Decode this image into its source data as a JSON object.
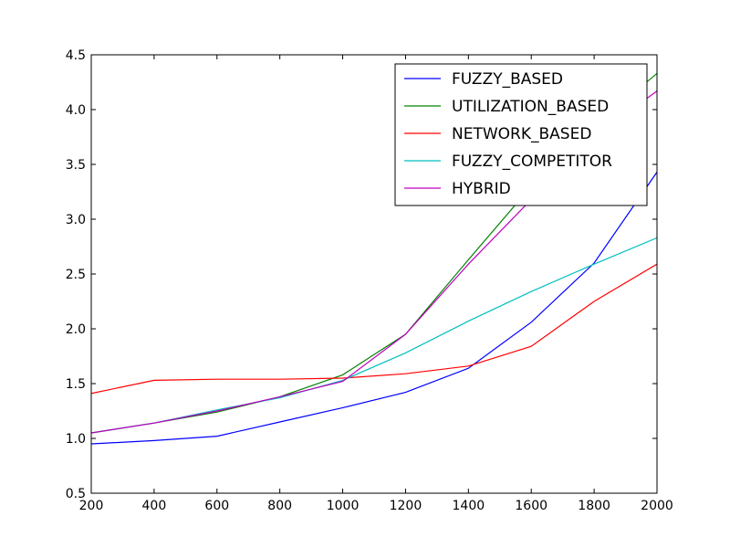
{
  "chart_data": {
    "type": "line",
    "title": "",
    "xlabel": "",
    "ylabel": "",
    "xlim": [
      200,
      2000
    ],
    "ylim": [
      0.5,
      4.5
    ],
    "xticks": [
      "200",
      "400",
      "600",
      "800",
      "1000",
      "1200",
      "1400",
      "1600",
      "1800",
      "2000"
    ],
    "yticks": [
      "0.5",
      "1.0",
      "1.5",
      "2.0",
      "2.5",
      "3.0",
      "3.5",
      "4.0",
      "4.5"
    ],
    "grid": false,
    "legend_position": "top-right",
    "x": [
      200,
      400,
      600,
      800,
      1000,
      1200,
      1400,
      1600,
      1800,
      2000
    ],
    "series": [
      {
        "name": "FUZZY_BASED",
        "color": "#0000ff",
        "values": [
          0.95,
          0.98,
          1.02,
          1.15,
          1.28,
          1.42,
          1.64,
          2.06,
          2.6,
          3.43
        ]
      },
      {
        "name": "UTILIZATION_BASED",
        "color": "#008000",
        "values": [
          1.05,
          1.14,
          1.24,
          1.38,
          1.58,
          1.95,
          2.63,
          3.3,
          3.85,
          4.33
        ]
      },
      {
        "name": "NETWORK_BASED",
        "color": "#ff0000",
        "values": [
          1.41,
          1.53,
          1.54,
          1.54,
          1.55,
          1.59,
          1.66,
          1.84,
          2.25,
          2.59
        ]
      },
      {
        "name": "FUZZY_COMPETITOR",
        "color": "#00bfbf",
        "values": [
          1.05,
          1.14,
          1.26,
          1.37,
          1.53,
          1.78,
          2.07,
          2.34,
          2.59,
          2.83
        ]
      },
      {
        "name": "HYBRID",
        "color": "#bf00bf",
        "values": [
          1.05,
          1.14,
          1.25,
          1.38,
          1.52,
          1.95,
          2.59,
          3.18,
          3.75,
          4.17
        ]
      }
    ]
  }
}
